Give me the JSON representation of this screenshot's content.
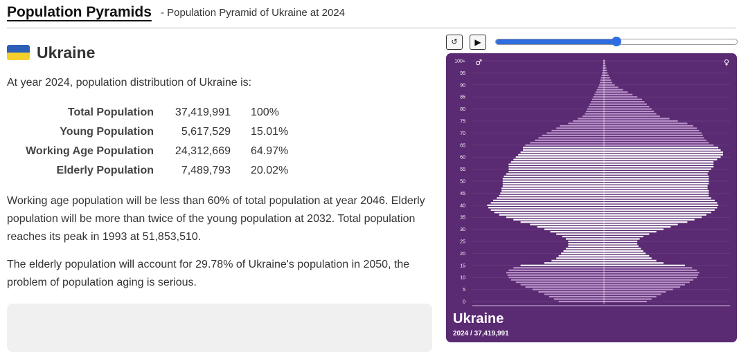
{
  "header": {
    "site_title": "Population Pyramids",
    "subtitle": "- Population Pyramid of Ukraine at 2024"
  },
  "country": {
    "name": "Ukraine",
    "flag_colors": [
      "#2d5fb8",
      "#f5cf2a"
    ]
  },
  "intro": "At year 2024, population distribution of Ukraine is:",
  "stats": [
    {
      "label": "Total Population",
      "value": "37,419,991",
      "percent": "100%"
    },
    {
      "label": "Young Population",
      "value": "5,617,529",
      "percent": "15.01%"
    },
    {
      "label": "Working Age Population",
      "value": "24,312,669",
      "percent": "64.97%"
    },
    {
      "label": "Elderly Population",
      "value": "7,489,793",
      "percent": "20.02%"
    }
  ],
  "paragraphs": [
    "Working age population will be less than 60% of total population at year 2046. Elderly population will be more than twice of the young population at 2032. Total population reaches its peak in 1993 at 51,853,510.",
    "The elderly population will account for 29.78% of Ukraine's population in 2050, the problem of population aging is serious."
  ],
  "controls": {
    "reset_icon": "reset-icon",
    "reset_glyph": "↺",
    "play_icon": "play-icon",
    "play_glyph": "▶",
    "slider_fraction": 0.5
  },
  "colors": {
    "background": "#5a2a72",
    "working_bar": "#ffffff",
    "other_bar": "#b993c8",
    "accent": "#2f6ee0"
  },
  "chart_data": {
    "type": "bar",
    "orientation": "horizontal-pyramid",
    "country": "Ukraine",
    "year": "2024",
    "total_label": "2024 / 37,419,991",
    "male_symbol": "♂",
    "female_symbol": "♀",
    "age_tick_labels": [
      "0",
      "5",
      "10",
      "15",
      "20",
      "25",
      "30",
      "35",
      "40",
      "45",
      "50",
      "55",
      "60",
      "65",
      "70",
      "75",
      "80",
      "85",
      "90",
      "95",
      "100+"
    ],
    "age_ticks": [
      0,
      5,
      10,
      15,
      20,
      25,
      30,
      35,
      40,
      45,
      50,
      55,
      60,
      65,
      70,
      75,
      80,
      85,
      90,
      95,
      100
    ],
    "ages": [
      0,
      1,
      2,
      3,
      4,
      5,
      6,
      7,
      8,
      9,
      10,
      11,
      12,
      13,
      14,
      15,
      16,
      17,
      18,
      19,
      20,
      21,
      22,
      23,
      24,
      25,
      26,
      27,
      28,
      29,
      30,
      31,
      32,
      33,
      34,
      35,
      36,
      37,
      38,
      39,
      40,
      41,
      42,
      43,
      44,
      45,
      46,
      47,
      48,
      49,
      50,
      51,
      52,
      53,
      54,
      55,
      56,
      57,
      58,
      59,
      60,
      61,
      62,
      63,
      64,
      65,
      66,
      67,
      68,
      69,
      70,
      71,
      72,
      73,
      74,
      75,
      76,
      77,
      78,
      79,
      80,
      81,
      82,
      83,
      84,
      85,
      86,
      87,
      88,
      89,
      90,
      91,
      92,
      93,
      94,
      95,
      96,
      97,
      98,
      99,
      100
    ],
    "working_age_range": [
      15,
      64
    ],
    "male_relative": [
      0.38,
      0.42,
      0.46,
      0.5,
      0.55,
      0.6,
      0.66,
      0.7,
      0.74,
      0.78,
      0.8,
      0.81,
      0.82,
      0.8,
      0.76,
      0.7,
      0.5,
      0.44,
      0.4,
      0.38,
      0.36,
      0.34,
      0.32,
      0.3,
      0.3,
      0.3,
      0.32,
      0.35,
      0.4,
      0.45,
      0.5,
      0.56,
      0.62,
      0.7,
      0.76,
      0.82,
      0.88,
      0.92,
      0.95,
      0.97,
      0.98,
      0.95,
      0.93,
      0.9,
      0.88,
      0.87,
      0.86,
      0.86,
      0.85,
      0.85,
      0.85,
      0.85,
      0.84,
      0.82,
      0.8,
      0.8,
      0.8,
      0.8,
      0.78,
      0.76,
      0.74,
      0.72,
      0.7,
      0.68,
      0.68,
      0.66,
      0.62,
      0.58,
      0.55,
      0.52,
      0.48,
      0.44,
      0.4,
      0.37,
      0.3,
      0.26,
      0.22,
      0.18,
      0.16,
      0.15,
      0.14,
      0.13,
      0.12,
      0.11,
      0.1,
      0.09,
      0.08,
      0.07,
      0.06,
      0.05,
      0.04,
      0.035,
      0.03,
      0.025,
      0.02,
      0.015,
      0.012,
      0.01,
      0.008,
      0.006,
      0.005
    ],
    "female_relative": [
      0.36,
      0.4,
      0.44,
      0.48,
      0.52,
      0.58,
      0.64,
      0.68,
      0.72,
      0.75,
      0.78,
      0.79,
      0.8,
      0.78,
      0.74,
      0.68,
      0.5,
      0.44,
      0.4,
      0.38,
      0.35,
      0.33,
      0.31,
      0.29,
      0.28,
      0.28,
      0.3,
      0.33,
      0.38,
      0.44,
      0.5,
      0.56,
      0.62,
      0.7,
      0.76,
      0.82,
      0.86,
      0.9,
      0.93,
      0.95,
      0.96,
      0.95,
      0.93,
      0.9,
      0.88,
      0.88,
      0.88,
      0.87,
      0.87,
      0.88,
      0.88,
      0.88,
      0.88,
      0.87,
      0.88,
      0.9,
      0.92,
      0.92,
      0.92,
      0.95,
      0.98,
      1.0,
      1.0,
      0.98,
      0.96,
      0.92,
      0.88,
      0.86,
      0.84,
      0.83,
      0.82,
      0.8,
      0.78,
      0.75,
      0.7,
      0.62,
      0.55,
      0.47,
      0.44,
      0.42,
      0.4,
      0.38,
      0.36,
      0.34,
      0.32,
      0.28,
      0.24,
      0.2,
      0.16,
      0.12,
      0.09,
      0.07,
      0.06,
      0.05,
      0.04,
      0.03,
      0.025,
      0.02,
      0.015,
      0.01,
      0.01
    ]
  }
}
